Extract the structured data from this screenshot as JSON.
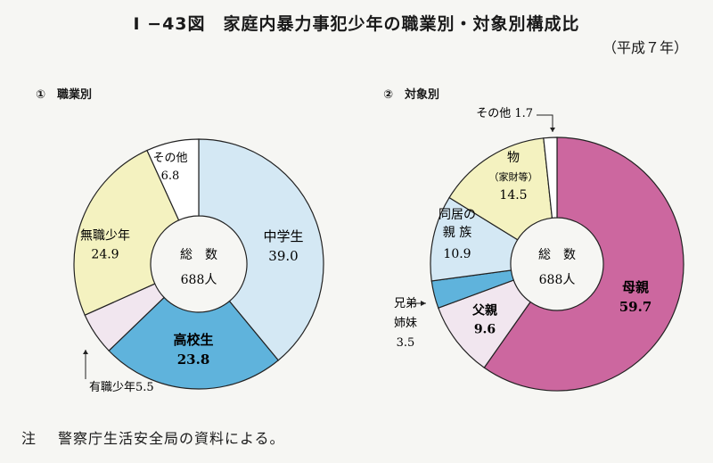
{
  "title": "I −43図　家庭内暴力事犯少年の職業別・対象別構成比",
  "subtitle": "（平成７年）",
  "note": {
    "label": "注",
    "text": "警察庁生活安全局の資料による。"
  },
  "colors": {
    "light_blue": "#d4e8f4",
    "mid_blue": "#5fb3dc",
    "light_yellow": "#f4f2c0",
    "pale_pink": "#f1e6ef",
    "white": "#ffffff",
    "magenta": "#cc679f"
  },
  "chart_data": [
    {
      "type": "pie",
      "title": "①　職業別",
      "center_label": {
        "line1": "総　数",
        "line2": "688人"
      },
      "slices": [
        {
          "name": "中学生",
          "value": 39.0,
          "value_text": "39.0",
          "color": "#d4e8f4"
        },
        {
          "name": "高校生",
          "value": 23.8,
          "value_text": "23.8",
          "color": "#5fb3dc"
        },
        {
          "name": "有職少年",
          "value": 5.5,
          "value_text": "5.5",
          "color": "#f1e6ef"
        },
        {
          "name": "無職少年",
          "value": 24.9,
          "value_text": "24.9",
          "color": "#f4f2c0"
        },
        {
          "name": "その他",
          "value": 6.8,
          "value_text": "6.8",
          "color": "#ffffff"
        }
      ]
    },
    {
      "type": "pie",
      "title": "②　対象別",
      "center_label": {
        "line1": "総　数",
        "line2": "688人"
      },
      "slices": [
        {
          "name": "母親",
          "value": 59.7,
          "value_text": "59.7",
          "color": "#cc679f"
        },
        {
          "name": "父親",
          "value": 9.6,
          "value_text": "9.6",
          "color": "#f1e6ef"
        },
        {
          "name": "兄弟姉妹",
          "value": 3.5,
          "value_text": "3.5",
          "color": "#5fb3dc"
        },
        {
          "name": "同居の親族",
          "value": 10.9,
          "value_text": "10.9",
          "color": "#d4e8f4"
        },
        {
          "name": "物",
          "sublabel": "（家財等）",
          "value": 14.5,
          "value_text": "14.5",
          "color": "#f4f2c0"
        },
        {
          "name": "その他",
          "value": 1.7,
          "value_text": "1.7",
          "color": "#ffffff"
        }
      ]
    }
  ]
}
